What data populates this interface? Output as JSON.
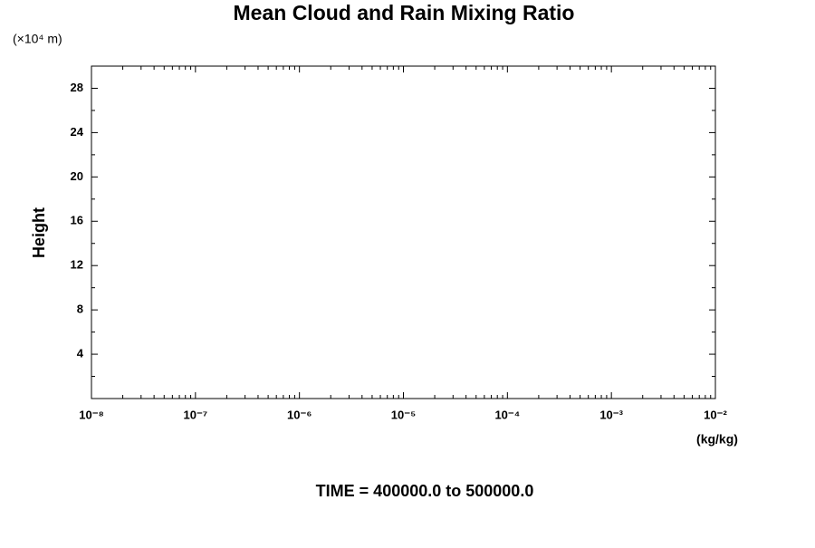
{
  "chart_data": {
    "type": "line",
    "title": "Mean Cloud and Rain Mixing Ratio",
    "ylabel": "Height",
    "y_multiplier": "(×10⁴ m)",
    "xlabel": "(kg/kg)",
    "annotation": "TIME = 400000.0 to 500000.0",
    "xscale": "log",
    "grid": false,
    "xlim": [
      1e-08,
      0.01
    ],
    "xticks": [
      {
        "value": 1e-08,
        "label": "10⁻⁸"
      },
      {
        "value": 1e-07,
        "label": "10⁻⁷"
      },
      {
        "value": 1e-06,
        "label": "10⁻⁶"
      },
      {
        "value": 1e-05,
        "label": "10⁻⁵"
      },
      {
        "value": 0.0001,
        "label": "10⁻⁴"
      },
      {
        "value": 0.001,
        "label": "10⁻³"
      },
      {
        "value": 0.01,
        "label": "10⁻²"
      }
    ],
    "xminorticks": [
      2e-08,
      3e-08,
      4e-08,
      5e-08,
      6e-08,
      7e-08,
      8e-08,
      9e-08,
      2e-07,
      3e-07,
      4e-07,
      5e-07,
      6e-07,
      7e-07,
      8e-07,
      9e-07,
      2e-06,
      3e-06,
      4e-06,
      5e-06,
      6e-06,
      7e-06,
      8e-06,
      9e-06,
      2e-05,
      3e-05,
      4e-05,
      5e-05,
      6e-05,
      7e-05,
      8e-05,
      9e-05,
      0.0002,
      0.0003,
      0.0004,
      0.0005,
      0.0006,
      0.0007,
      0.0008,
      0.0009,
      0.002,
      0.003,
      0.004,
      0.005,
      0.006,
      0.007,
      0.008,
      0.009
    ],
    "ylim": [
      0,
      30
    ],
    "yticks": [
      4,
      8,
      12,
      16,
      20,
      24,
      28
    ],
    "yminorticks": [
      2,
      6,
      10,
      14,
      18,
      22,
      26
    ],
    "series": []
  }
}
